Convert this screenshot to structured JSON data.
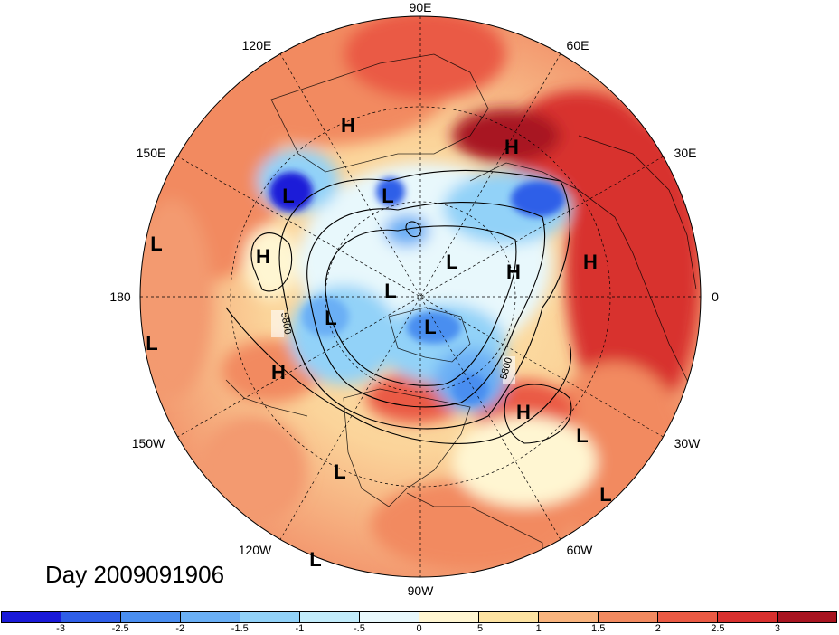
{
  "title": "Day 2009091906",
  "map": {
    "projection": "north-polar-stereographic",
    "longitude_labels": [
      "90E",
      "60E",
      "30E",
      "0",
      "30W",
      "60W",
      "90W",
      "120W",
      "150W",
      "180",
      "150E",
      "120E"
    ],
    "contour_labels": [
      "5800",
      "5800"
    ],
    "pressure_centers": [
      {
        "type": "H"
      },
      {
        "type": "H"
      },
      {
        "type": "H"
      },
      {
        "type": "H"
      },
      {
        "type": "H"
      },
      {
        "type": "H"
      },
      {
        "type": "H"
      },
      {
        "type": "L"
      },
      {
        "type": "L"
      },
      {
        "type": "L"
      },
      {
        "type": "L"
      },
      {
        "type": "L"
      },
      {
        "type": "L"
      },
      {
        "type": "L"
      },
      {
        "type": "L"
      },
      {
        "type": "L"
      },
      {
        "type": "L"
      },
      {
        "type": "L"
      },
      {
        "type": "L"
      }
    ]
  },
  "colorbar": {
    "colors": [
      "#1a1ad8",
      "#2f5fe8",
      "#4a8ef0",
      "#6aaff5",
      "#92d2f8",
      "#c2ecfb",
      "#e8f8fc",
      "#fff6d2",
      "#fde3a2",
      "#f9b47e",
      "#f28a60",
      "#ea5a44",
      "#d8302e",
      "#a81420"
    ],
    "tick_labels": [
      "-3",
      "-2.5",
      "-2",
      "-1.5",
      "-1",
      "-.5",
      "0",
      ".5",
      "1",
      "1.5",
      "2",
      "2.5",
      "3"
    ]
  }
}
